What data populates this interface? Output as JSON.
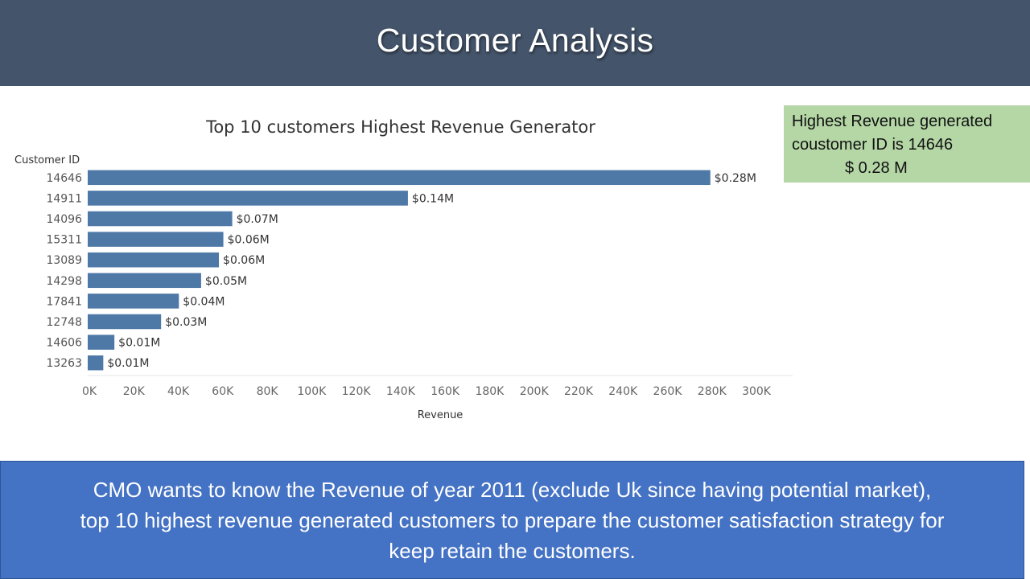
{
  "header": {
    "title": "Customer Analysis"
  },
  "callout": {
    "line1": "Highest Revenue generated",
    "line2": "coustomer ID  is 14646",
    "line3": "$ 0.28 M"
  },
  "note": {
    "line1": "CMO wants to know the Revenue of year 2011 (exclude Uk since having potential market),",
    "line2": "top 10 highest revenue generated customers to prepare the customer satisfaction strategy  for",
    "line3": "keep retain the customers."
  },
  "colors": {
    "bar": "#4e79a7",
    "header_bg": "#44546a",
    "callout_bg": "#b5d7a6",
    "note_bg": "#4472c4"
  },
  "chart_data": {
    "type": "bar",
    "orientation": "horizontal",
    "title": "Top 10 customers Highest Revenue Generator",
    "ylabel": "Customer ID",
    "xlabel": "Revenue",
    "categories": [
      "14646",
      "14911",
      "14096",
      "15311",
      "13089",
      "14298",
      "17841",
      "12748",
      "14606",
      "13263"
    ],
    "values": [
      280000,
      144000,
      65000,
      61000,
      59000,
      51000,
      41000,
      33000,
      12000,
      7000
    ],
    "data_labels": [
      "$0.28M",
      "$0.14M",
      "$0.07M",
      "$0.06M",
      "$0.06M",
      "$0.05M",
      "$0.04M",
      "$0.03M",
      "$0.01M",
      "$0.01M"
    ],
    "xticks": [
      0,
      20000,
      40000,
      60000,
      80000,
      100000,
      120000,
      140000,
      160000,
      180000,
      200000,
      220000,
      240000,
      260000,
      280000,
      300000
    ],
    "xtick_labels": [
      "0K",
      "20K",
      "40K",
      "60K",
      "80K",
      "100K",
      "120K",
      "140K",
      "160K",
      "180K",
      "200K",
      "220K",
      "240K",
      "260K",
      "280K",
      "300K"
    ],
    "xlim": [
      0,
      317000
    ],
    "grid": false
  }
}
